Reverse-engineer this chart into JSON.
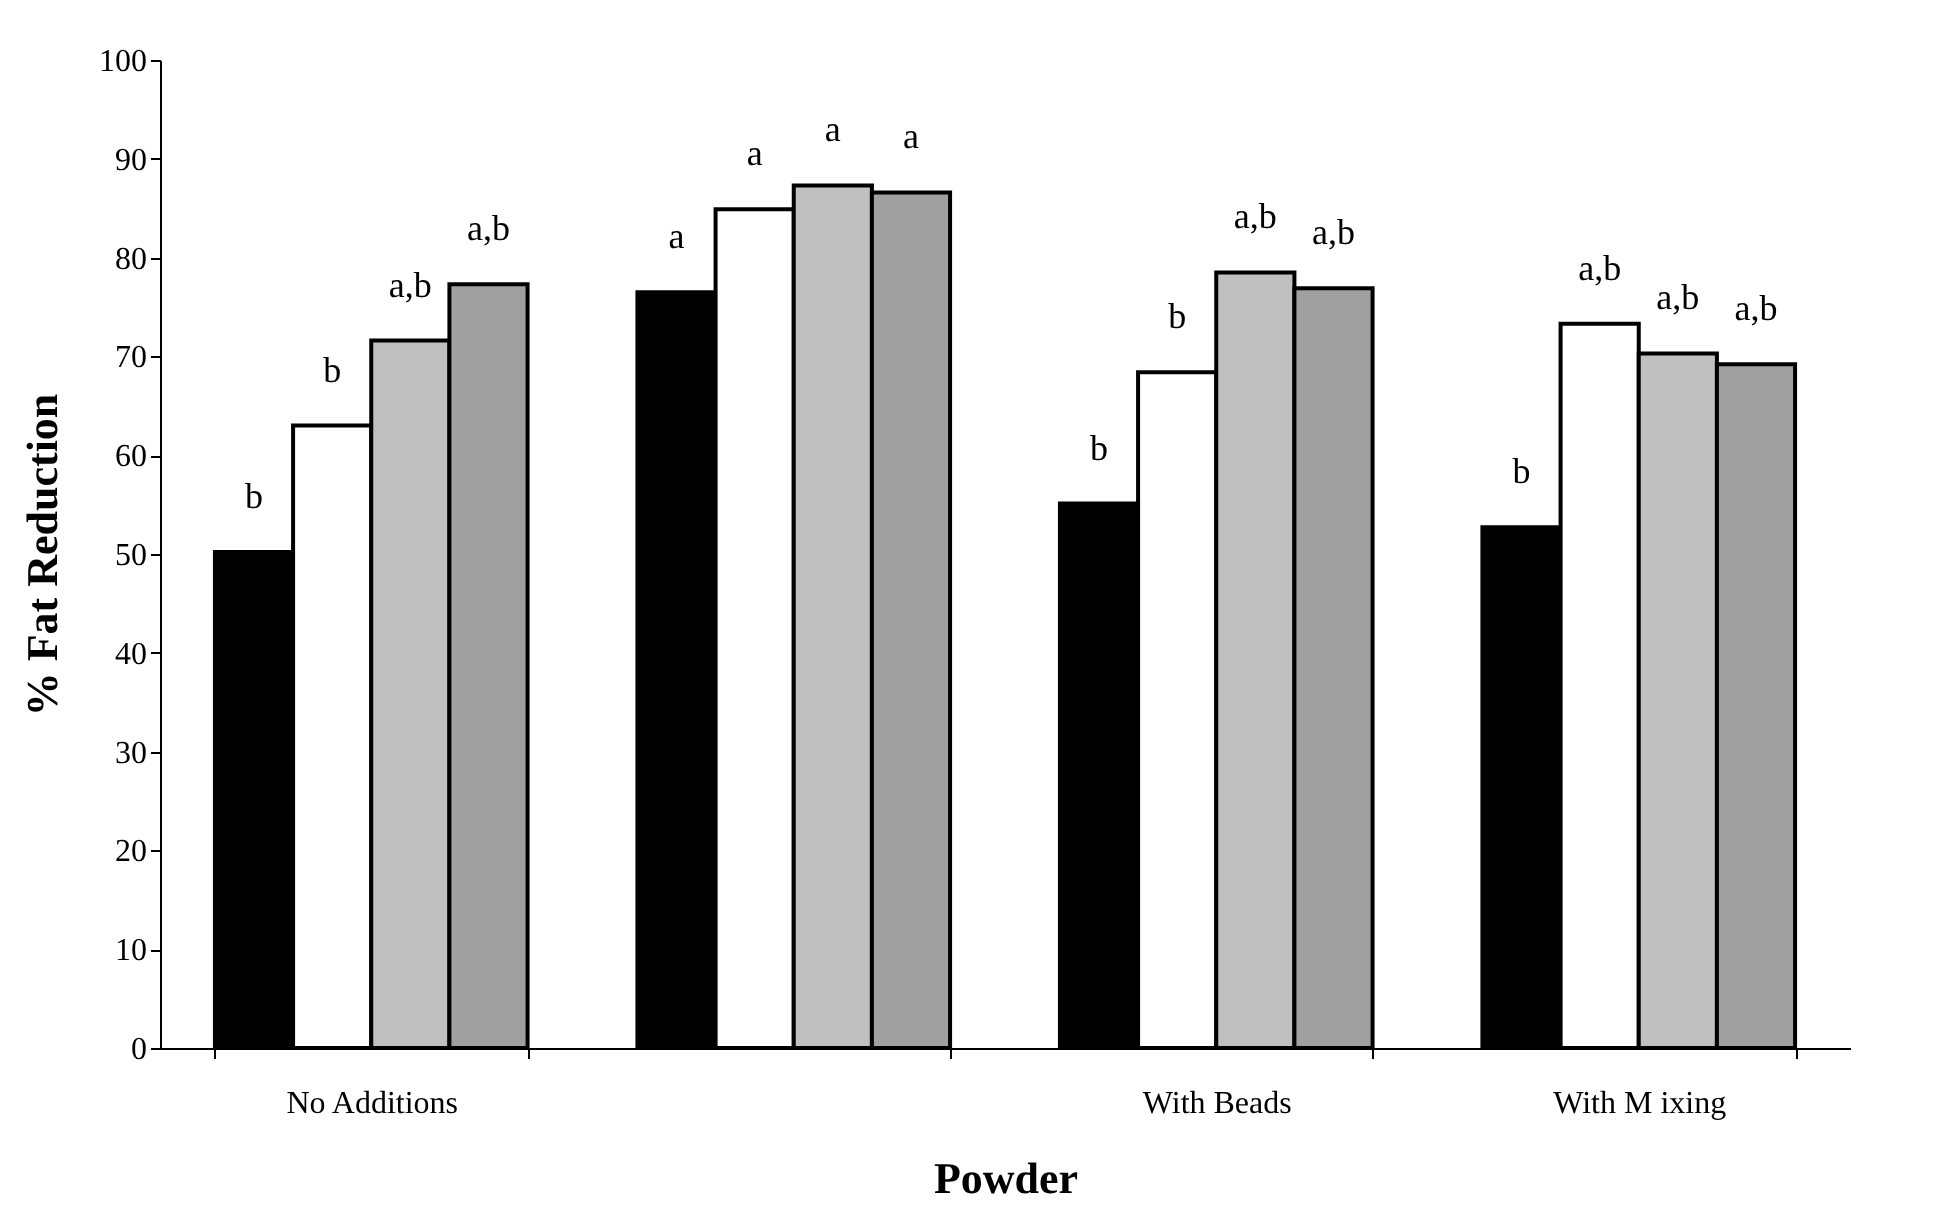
{
  "chart_data": {
    "type": "bar",
    "xlabel": "Powder",
    "ylabel": "% Fat Reduction",
    "categories": [
      "No Additions",
      null,
      "With Beads",
      "With M ixing"
    ],
    "series": [
      {
        "color": "#000000",
        "values": [
          50.2,
          76.5,
          55.1,
          52.7
        ],
        "value_labels": [
          "b",
          "a",
          "b",
          "b"
        ]
      },
      {
        "color": "#ffffff",
        "values": [
          63.0,
          84.9,
          68.4,
          73.3
        ],
        "value_labels": [
          "b",
          "a",
          "b",
          "a,b"
        ]
      },
      {
        "color": "#c0c0c0",
        "values": [
          71.6,
          87.3,
          78.5,
          70.3
        ],
        "value_labels": [
          "a,b",
          "a",
          "a,b",
          "a,b"
        ]
      },
      {
        "color": "#a0a0a0",
        "values": [
          77.3,
          86.6,
          76.9,
          69.2
        ],
        "value_labels": [
          "a,b",
          "a",
          "a,b",
          "a,b"
        ]
      }
    ],
    "ylim": [
      0,
      100
    ],
    "yticks": [
      0,
      10,
      20,
      30,
      40,
      50,
      60,
      70,
      80,
      90,
      100
    ],
    "grid": false,
    "legend": false
  }
}
